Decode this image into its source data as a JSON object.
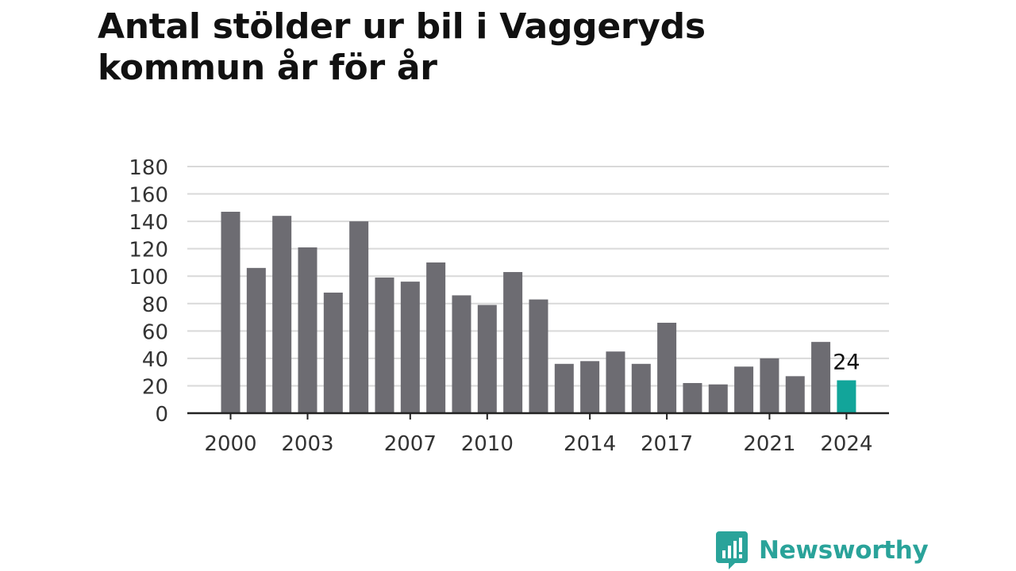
{
  "brand": {
    "name": "Newsworthy",
    "icon": "speech-bubble-chart-icon",
    "color": "#2aa39a"
  },
  "chart_data": {
    "type": "bar",
    "title": "Antal stölder ur bil i Vaggeryds kommun år för år",
    "xlabel": "",
    "ylabel": "",
    "categories": [
      "2000",
      "2001",
      "2002",
      "2003",
      "2004",
      "2005",
      "2006",
      "2007",
      "2008",
      "2009",
      "2010",
      "2011",
      "2012",
      "2013",
      "2014",
      "2015",
      "2016",
      "2017",
      "2018",
      "2019",
      "2020",
      "2021",
      "2022",
      "2023",
      "2024"
    ],
    "values": [
      147,
      106,
      144,
      121,
      88,
      140,
      99,
      96,
      110,
      86,
      79,
      103,
      83,
      36,
      38,
      45,
      36,
      66,
      22,
      21,
      34,
      40,
      27,
      52,
      24
    ],
    "xtick_labels": [
      "2000",
      "2003",
      "2007",
      "2010",
      "2014",
      "2017",
      "2021",
      "2024"
    ],
    "yticks": [
      0,
      20,
      40,
      60,
      80,
      100,
      120,
      140,
      160,
      180
    ],
    "ylim": [
      0,
      180
    ],
    "grid": true,
    "highlight": {
      "category": "2024",
      "label": "24"
    },
    "colors": {
      "bar": "#6d6c72",
      "highlight": "#12a59a",
      "grid": "#d9d9d9",
      "axis": "#222222",
      "text": "#333333"
    }
  }
}
